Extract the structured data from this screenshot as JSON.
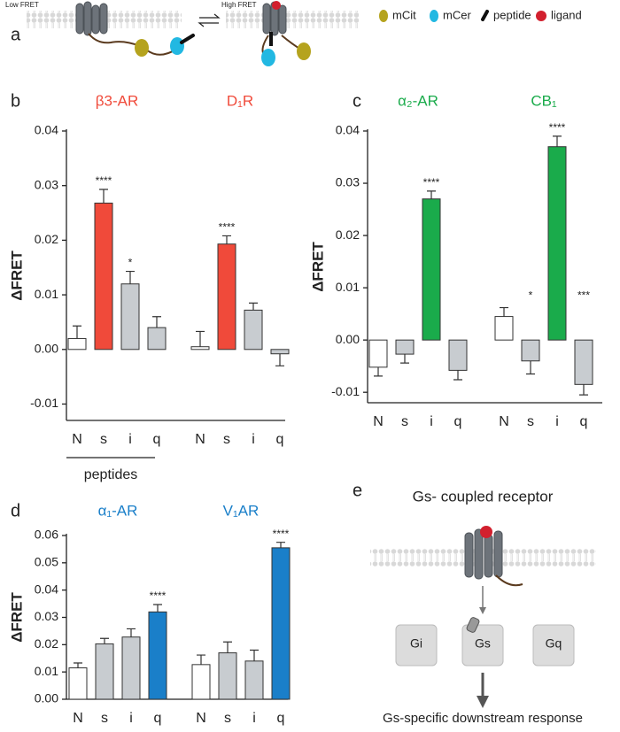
{
  "chart_data": [
    {
      "type": "bar",
      "panel": "b",
      "ylabel": "ΔFRET",
      "ylim": [
        -0.013,
        0.04
      ],
      "yticks": [
        -0.01,
        {
          "value": 0,
          "label": "0.00"
        },
        0.01,
        0.02,
        0.03,
        0.04
      ],
      "xnote": "peptides",
      "groups": [
        {
          "name": "β3-AR",
          "name_color": "#f04a3a",
          "categories": [
            "N",
            "s",
            "i",
            "q"
          ],
          "values": [
            0.002,
            0.0268,
            0.012,
            0.004
          ],
          "errors": [
            0.0023,
            0.0025,
            0.0023,
            0.002
          ],
          "bar_colors": [
            "#ffffff",
            "#f04a3a",
            "#c8ccd0",
            "#c8ccd0"
          ],
          "significance": [
            null,
            "****",
            "*",
            null
          ]
        },
        {
          "name": "D₁R",
          "name_color": "#f04a3a",
          "categories": [
            "N",
            "s",
            "i",
            "q"
          ],
          "values": [
            0.0005,
            0.0193,
            0.0072,
            -0.0008
          ],
          "errors": [
            0.0028,
            0.0015,
            0.0013,
            0.0022
          ],
          "bar_colors": [
            "#ffffff",
            "#f04a3a",
            "#c8ccd0",
            "#c8ccd0"
          ],
          "significance": [
            null,
            "****",
            null,
            null
          ]
        }
      ]
    },
    {
      "type": "bar",
      "panel": "c",
      "ylabel": "ΔFRET",
      "ylim": [
        -0.012,
        0.04
      ],
      "yticks": [
        -0.01,
        {
          "value": 0,
          "label": "0.00"
        },
        0.01,
        0.02,
        0.03,
        0.04
      ],
      "groups": [
        {
          "name": "α₂-AR",
          "name_color": "#1aab4b",
          "categories": [
            "N",
            "s",
            "i",
            "q"
          ],
          "values": [
            -0.0052,
            -0.0027,
            0.027,
            -0.0058
          ],
          "errors": [
            0.0017,
            0.0017,
            0.0015,
            0.0018
          ],
          "bar_colors": [
            "#ffffff",
            "#c8ccd0",
            "#1aab4b",
            "#c8ccd0"
          ],
          "significance": [
            null,
            null,
            "****",
            null
          ]
        },
        {
          "name": "CB₁",
          "name_color": "#1aab4b",
          "categories": [
            "N",
            "s",
            "i",
            "q"
          ],
          "values": [
            0.0045,
            -0.004,
            0.037,
            -0.0085
          ],
          "errors": [
            0.0017,
            0.0025,
            0.002,
            0.002
          ],
          "bar_colors": [
            "#ffffff",
            "#c8ccd0",
            "#1aab4b",
            "#c8ccd0"
          ],
          "significance": [
            null,
            "*",
            "****",
            "***"
          ]
        }
      ]
    },
    {
      "type": "bar",
      "panel": "d",
      "ylabel": "ΔFRET",
      "ylim": [
        0,
        0.06
      ],
      "yticks": [
        {
          "value": 0,
          "label": "0.00"
        },
        0.01,
        0.02,
        0.03,
        0.04,
        0.05,
        0.06
      ],
      "groups": [
        {
          "name": "α₁-AR",
          "name_color": "#1a7fc9",
          "categories": [
            "N",
            "s",
            "i",
            "q"
          ],
          "values": [
            0.0115,
            0.0203,
            0.0228,
            0.032
          ],
          "errors": [
            0.0018,
            0.002,
            0.003,
            0.0027
          ],
          "bar_colors": [
            "#ffffff",
            "#c8ccd0",
            "#c8ccd0",
            "#1a7fc9"
          ],
          "significance": [
            null,
            null,
            null,
            "****"
          ]
        },
        {
          "name": "V₁AR",
          "name_color": "#1a7fc9",
          "categories": [
            "N",
            "s",
            "i",
            "q"
          ],
          "values": [
            0.0127,
            0.017,
            0.014,
            0.0555
          ],
          "errors": [
            0.0035,
            0.004,
            0.004,
            0.002
          ],
          "bar_colors": [
            "#ffffff",
            "#c8ccd0",
            "#c8ccd0",
            "#1a7fc9"
          ],
          "significance": [
            null,
            null,
            null,
            "****"
          ]
        }
      ]
    }
  ],
  "panel_a": {
    "label": "a",
    "low": "Low FRET",
    "high": "High FRET",
    "legend": [
      "mCit",
      "mCer",
      "peptide",
      "ligand"
    ]
  },
  "panel_e": {
    "label": "e",
    "title": "Gs- coupled receptor",
    "proteins": [
      "Gi",
      "Gs",
      "Gq"
    ],
    "response": "Gs-specific downstream response"
  }
}
